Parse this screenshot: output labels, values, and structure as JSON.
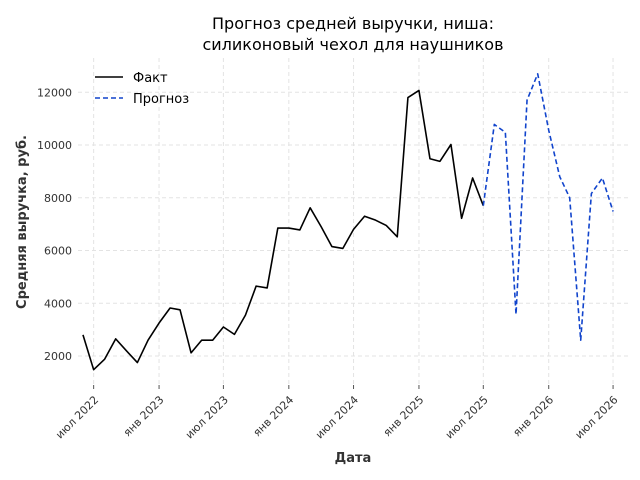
{
  "chart_data": {
    "type": "line",
    "title_lines": [
      "Прогноз средней выручки, ниша:",
      "силиконовый чехол для наушников"
    ],
    "xlabel": "Дата",
    "ylabel": "Средняя выручка, руб.",
    "ylim": [
      900,
      13300
    ],
    "x_range": [
      "2022-05-18",
      "2026-08-12"
    ],
    "y_ticks": [
      2000,
      4000,
      6000,
      8000,
      10000,
      12000
    ],
    "y_tick_labels": [
      "2000",
      "4000",
      "6000",
      "8000",
      "10000",
      "12000"
    ],
    "x_ticks": [
      "2022-07-01",
      "2023-01-01",
      "2023-07-01",
      "2024-01-01",
      "2024-07-01",
      "2025-01-01",
      "2025-07-01",
      "2026-01-01",
      "2026-07-01"
    ],
    "x_tick_labels": [
      "июл 2022",
      "янв 2023",
      "июл 2023",
      "янв 2024",
      "июл 2024",
      "янв 2025",
      "июл 2025",
      "янв 2026",
      "июл 2026"
    ],
    "grid": true,
    "legend_position": "top-left",
    "series": [
      {
        "name": "Факт",
        "style": "solid",
        "color": "#000000",
        "points": [
          [
            "2022-06-01",
            2800
          ],
          [
            "2022-07-01",
            1480
          ],
          [
            "2022-08-01",
            1880
          ],
          [
            "2022-09-01",
            2650
          ],
          [
            "2022-10-01",
            2200
          ],
          [
            "2022-11-01",
            1750
          ],
          [
            "2022-12-01",
            2600
          ],
          [
            "2023-01-01",
            3250
          ],
          [
            "2023-02-01",
            3820
          ],
          [
            "2023-03-01",
            3750
          ],
          [
            "2023-04-01",
            2120
          ],
          [
            "2023-05-01",
            2600
          ],
          [
            "2023-06-01",
            2600
          ],
          [
            "2023-07-01",
            3100
          ],
          [
            "2023-08-01",
            2820
          ],
          [
            "2023-09-01",
            3550
          ],
          [
            "2023-10-01",
            4650
          ],
          [
            "2023-11-01",
            4580
          ],
          [
            "2023-12-01",
            6850
          ],
          [
            "2024-01-01",
            6850
          ],
          [
            "2024-02-01",
            6780
          ],
          [
            "2024-03-01",
            7620
          ],
          [
            "2024-04-01",
            6900
          ],
          [
            "2024-05-01",
            6150
          ],
          [
            "2024-06-01",
            6080
          ],
          [
            "2024-07-01",
            6800
          ],
          [
            "2024-08-01",
            7300
          ],
          [
            "2024-09-01",
            7150
          ],
          [
            "2024-10-01",
            6950
          ],
          [
            "2024-11-01",
            6520
          ],
          [
            "2024-12-01",
            11800
          ],
          [
            "2025-01-01",
            12070
          ],
          [
            "2025-02-01",
            9480
          ],
          [
            "2025-03-01",
            9380
          ],
          [
            "2025-04-01",
            10020
          ],
          [
            "2025-05-01",
            7220
          ],
          [
            "2025-06-01",
            8750
          ],
          [
            "2025-07-01",
            7700
          ]
        ]
      },
      {
        "name": "Прогноз",
        "style": "dashed",
        "color": "#1144cc",
        "points": [
          [
            "2025-07-01",
            7700
          ],
          [
            "2025-08-01",
            10780
          ],
          [
            "2025-09-01",
            10480
          ],
          [
            "2025-10-01",
            3580
          ],
          [
            "2025-11-01",
            11700
          ],
          [
            "2025-12-01",
            12700
          ],
          [
            "2026-01-01",
            10560
          ],
          [
            "2026-02-01",
            8800
          ],
          [
            "2026-03-01",
            8000
          ],
          [
            "2026-04-01",
            2600
          ],
          [
            "2026-05-01",
            8160
          ],
          [
            "2026-06-01",
            8750
          ],
          [
            "2026-07-01",
            7480
          ]
        ]
      }
    ]
  }
}
